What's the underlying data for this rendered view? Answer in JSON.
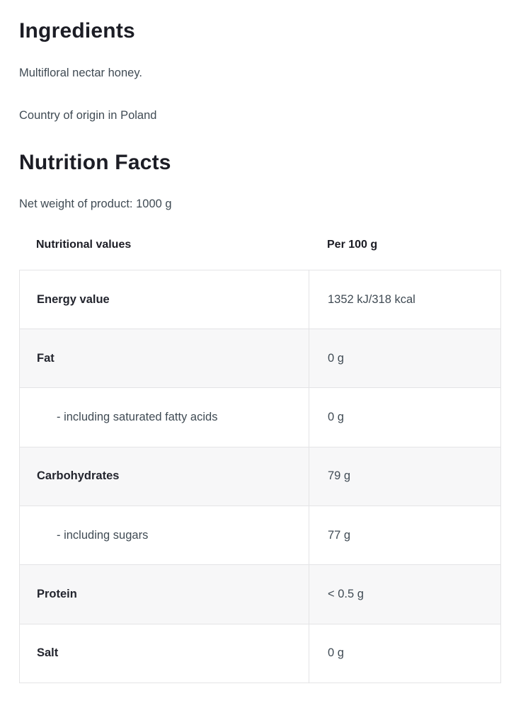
{
  "ingredients": {
    "title": "Ingredients",
    "description": "Multifloral nectar honey.",
    "origin": "Country of origin in Poland"
  },
  "nutrition": {
    "title": "Nutrition Facts",
    "net_weight": "Net weight of product: 1000 g",
    "table": {
      "headers": [
        "Nutritional values",
        "Per 100 g"
      ],
      "rows": [
        {
          "label": "Energy value",
          "value": "1352 kJ/318 kcal",
          "indent": false
        },
        {
          "label": "Fat",
          "value": "0 g",
          "indent": false
        },
        {
          "label": "- including saturated fatty acids",
          "value": "0 g",
          "indent": true
        },
        {
          "label": "Carbohydrates",
          "value": "79 g",
          "indent": false
        },
        {
          "label": "- including sugars",
          "value": "77 g",
          "indent": true
        },
        {
          "label": "Protein",
          "value": "< 0.5 g",
          "indent": false
        },
        {
          "label": "Salt",
          "value": "0 g",
          "indent": false
        }
      ]
    }
  },
  "colors": {
    "heading": "#1c1d25",
    "label": "#23252e",
    "body_text": "#404b54",
    "table_border": "#e4e4e6",
    "alt_row_background": "#f7f7f8",
    "background": "#ffffff"
  }
}
